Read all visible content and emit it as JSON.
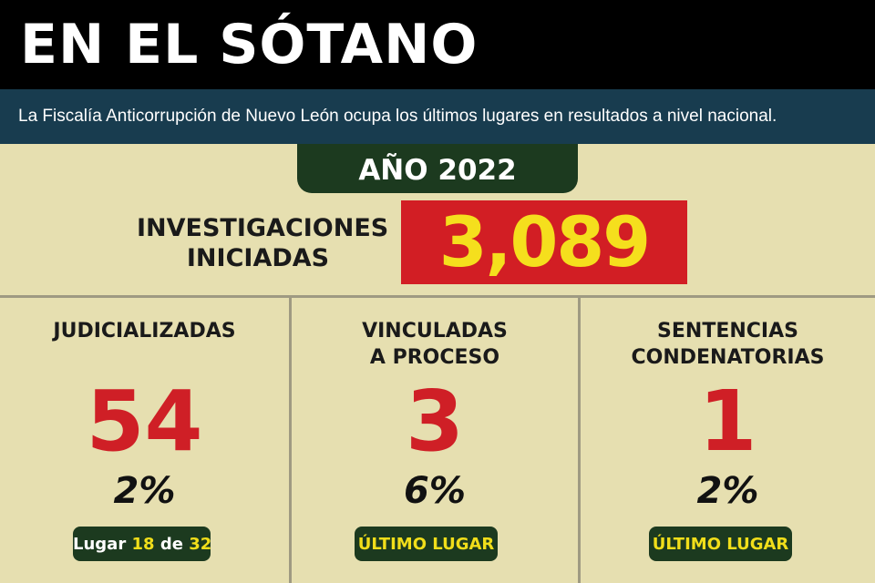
{
  "header": {
    "title": "EN EL SÓTANO"
  },
  "subtitle": "La Fiscalía Anticorrupción de Nuevo León ocupa los últimos lugares en resultados a nivel nacional.",
  "year": "AÑO 2022",
  "investigaciones": {
    "label_line1": "INVESTIGACIONES",
    "label_line2": "INICIADAS",
    "value": "3,089"
  },
  "columns": [
    {
      "title_line1": "JUDICIALIZADAS",
      "title_line2": "",
      "value": "54",
      "percent": "2%",
      "rank": {
        "prefix": "Lugar",
        "position": "18",
        "connector": "de",
        "total": "32"
      }
    },
    {
      "title_line1": "VINCULADAS",
      "title_line2": "A PROCESO",
      "value": "3",
      "percent": "6%",
      "rank_label": "ÚLTIMO LUGAR"
    },
    {
      "title_line1": "SENTENCIAS",
      "title_line2": "CONDENATORIAS",
      "value": "1",
      "percent": "2%",
      "rank_label": "ÚLTIMO LUGAR"
    }
  ],
  "colors": {
    "background": "#e6dfb0",
    "header": "#000000",
    "subbar": "#183c4f",
    "dark_green": "#1c3a1f",
    "red": "#d21e24",
    "yellow": "#f5df1d"
  }
}
